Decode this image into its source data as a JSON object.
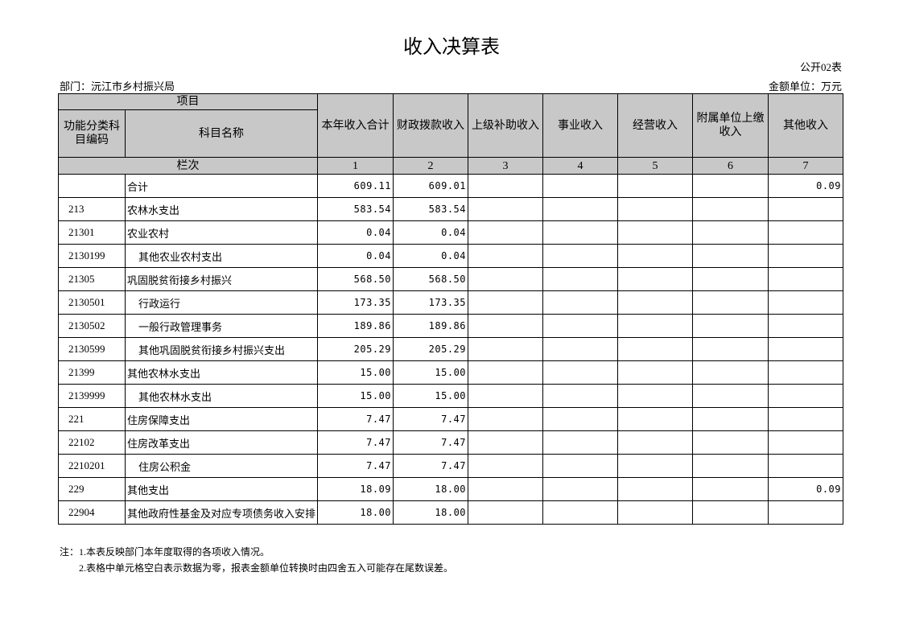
{
  "header": {
    "title": "收入决算表",
    "form_no": "公开02表",
    "department": "部门：沅江市乡村振兴局",
    "unit": "金额单位：万元"
  },
  "table": {
    "group_header": "项目",
    "code_header": "功能分类科目编码",
    "name_header": "科目名称",
    "columns": [
      "本年收入合计",
      "财政拨款收入",
      "上级补助收入",
      "事业收入",
      "经营收入",
      "附属单位上缴收入",
      "其他收入"
    ],
    "index_label": "栏次",
    "column_numbers": [
      "1",
      "2",
      "3",
      "4",
      "5",
      "6",
      "7"
    ],
    "rows": [
      {
        "code": null,
        "name": "合计",
        "cells": [
          "609.11",
          "609.01",
          null,
          null,
          null,
          null,
          "0.09"
        ]
      },
      {
        "code": "213",
        "name": "农林水支出",
        "cells": [
          "583.54",
          "583.54",
          null,
          null,
          null,
          null,
          null
        ]
      },
      {
        "code": "21301",
        "name": "农业农村",
        "cells": [
          "0.04",
          "0.04",
          null,
          null,
          null,
          null,
          null
        ]
      },
      {
        "code": "2130199",
        "name": "其他农业农村支出",
        "cells": [
          "0.04",
          "0.04",
          null,
          null,
          null,
          null,
          null
        ]
      },
      {
        "code": "21305",
        "name": "巩固脱贫衔接乡村振兴",
        "cells": [
          "568.50",
          "568.50",
          null,
          null,
          null,
          null,
          null
        ]
      },
      {
        "code": "2130501",
        "name": "行政运行",
        "cells": [
          "173.35",
          "173.35",
          null,
          null,
          null,
          null,
          null
        ]
      },
      {
        "code": "2130502",
        "name": "一般行政管理事务",
        "cells": [
          "189.86",
          "189.86",
          null,
          null,
          null,
          null,
          null
        ]
      },
      {
        "code": "2130599",
        "name": "其他巩固脱贫衔接乡村振兴支出",
        "cells": [
          "205.29",
          "205.29",
          null,
          null,
          null,
          null,
          null
        ]
      },
      {
        "code": "21399",
        "name": "其他农林水支出",
        "cells": [
          "15.00",
          "15.00",
          null,
          null,
          null,
          null,
          null
        ]
      },
      {
        "code": "2139999",
        "name": "其他农林水支出",
        "cells": [
          "15.00",
          "15.00",
          null,
          null,
          null,
          null,
          null
        ]
      },
      {
        "code": "221",
        "name": "住房保障支出",
        "cells": [
          "7.47",
          "7.47",
          null,
          null,
          null,
          null,
          null
        ]
      },
      {
        "code": "22102",
        "name": "住房改革支出",
        "cells": [
          "7.47",
          "7.47",
          null,
          null,
          null,
          null,
          null
        ]
      },
      {
        "code": "2210201",
        "name": "住房公积金",
        "cells": [
          "7.47",
          "7.47",
          null,
          null,
          null,
          null,
          null
        ]
      },
      {
        "code": "229",
        "name": "其他支出",
        "cells": [
          "18.09",
          "18.00",
          null,
          null,
          null,
          null,
          "0.09"
        ]
      },
      {
        "code": "22904",
        "name": "其他政府性基金及对应专项债务收入安排",
        "cells": [
          "18.00",
          "18.00",
          null,
          null,
          null,
          null,
          null
        ]
      }
    ]
  },
  "notes": [
    "注：1.本表反映部门本年度取得的各项收入情况。",
    "2.表格中单元格空白表示数据为零，报表金额单位转换时由四舍五入可能存在尾数误差。"
  ]
}
